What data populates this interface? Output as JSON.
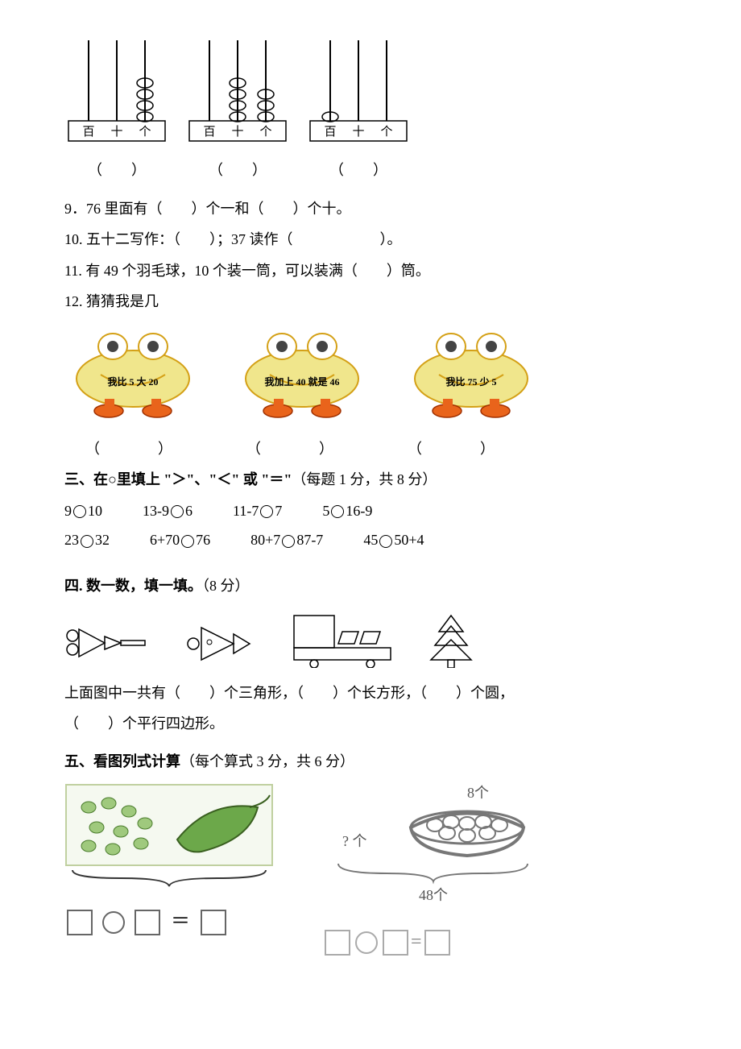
{
  "abacus": {
    "labels": [
      "百",
      "十",
      "个"
    ],
    "items": [
      {
        "beads": [
          0,
          0,
          4
        ]
      },
      {
        "beads": [
          0,
          4,
          3
        ]
      },
      {
        "beads": [
          1,
          0,
          0
        ]
      }
    ],
    "blank_template": "（　　）"
  },
  "q9": "9．76 里面有（　　）个一和（　　）个十。",
  "q10": "10. 五十二写作：（　　）；37 读作（　　　　　　）。",
  "q11": "11. 有 49 个羽毛球，10 个装一筒，可以装满（　　）筒。",
  "q12_title": "12. 猜猜我是几",
  "frogs": {
    "items": [
      {
        "text_a": "我比 5 大 ",
        "text_b": "20"
      },
      {
        "text_a": "我加上 ",
        "text_b": "40 就是 46"
      },
      {
        "text_a": "我比 75 少 ",
        "text_b": "5"
      }
    ],
    "blank_template": "（　　　　）"
  },
  "section3": {
    "title": "三、在○里填上 \"＞\"、\"＜\" 或 \"＝\"",
    "score": "（每题 1 分，共 8 分）",
    "row1": [
      "9○10",
      "13-9○6",
      "11-7○7",
      "5○16-9"
    ],
    "row2": [
      "23○32",
      "6+70○76",
      "80+7○87-7",
      "45○50+4"
    ]
  },
  "section4": {
    "title": "四. 数一数，填一填。",
    "score": "（8 分）",
    "line1": "上面图中一共有（　　）个三角形，（　　）个长方形，（　　）个圆，",
    "line2": "（　　）个平行四边形。"
  },
  "section5": {
    "title": "五、看图列式计算",
    "score": "（每个算式 3 分，共 6 分）",
    "problem2": {
      "top_label": "8个",
      "unknown_label": "? 个",
      "total_label": "48个"
    }
  },
  "colors": {
    "frog_body": "#f0e68c",
    "frog_stroke": "#d4a016",
    "frog_foot": "#e9641b",
    "bean_green": "#7fb069",
    "bean_dark": "#4a7c2c",
    "gray": "#888888"
  }
}
